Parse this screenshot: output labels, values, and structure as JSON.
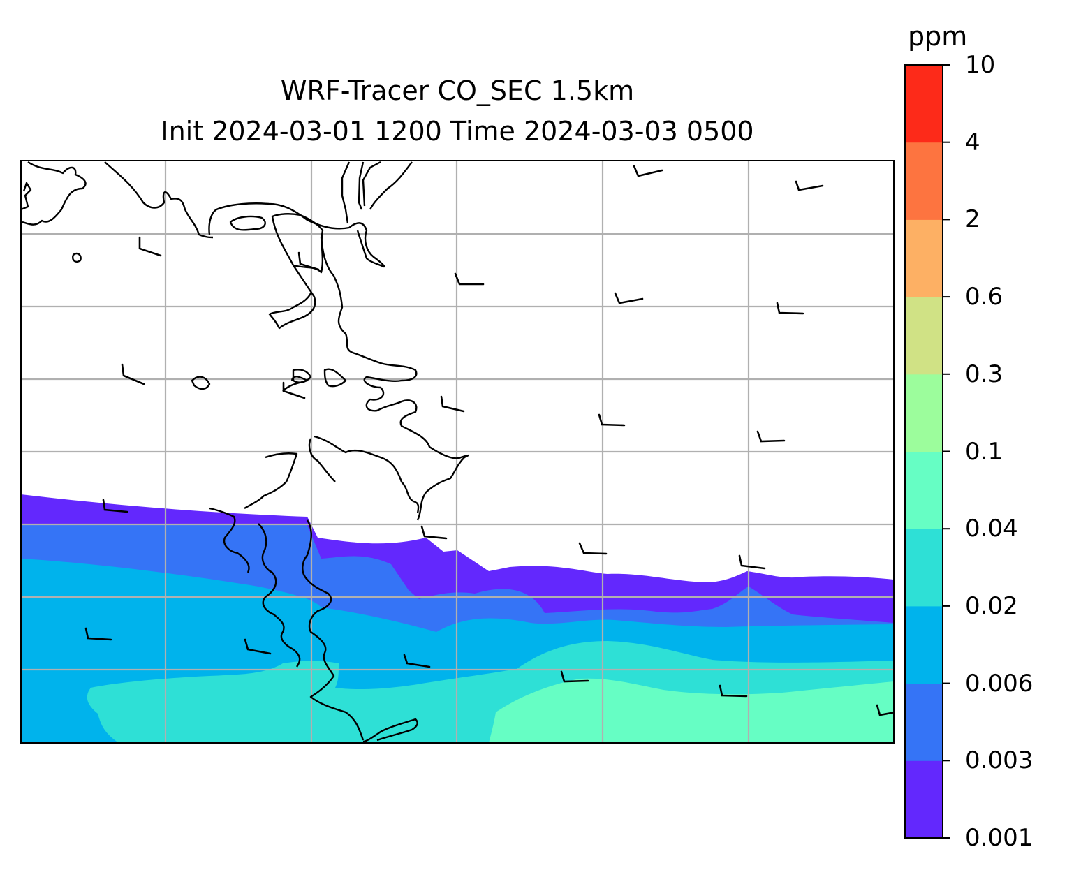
{
  "title": {
    "line1": "WRF-Tracer CO_SEC 1.5km",
    "line2": "Init 2024-03-01 1200 Time 2024-03-03 0500"
  },
  "colorbar": {
    "unit": "ppm",
    "levels": [
      "0.001",
      "0.003",
      "0.006",
      "0.02",
      "0.04",
      "0.1",
      "0.3",
      "0.6",
      "2",
      "4",
      "10"
    ],
    "colors": [
      "#6328fd",
      "#3574f6",
      "#00b3ec",
      "#2ee0d6",
      "#66fec4",
      "#9cfd9c",
      "#d0e285",
      "#fdb064",
      "#fd7440",
      "#fd2a19"
    ]
  },
  "map": {
    "land_fill": "#ffffff",
    "coastline_color": "#000000",
    "gridline_color": "#b0b0b0",
    "wind_barbs": true
  }
}
